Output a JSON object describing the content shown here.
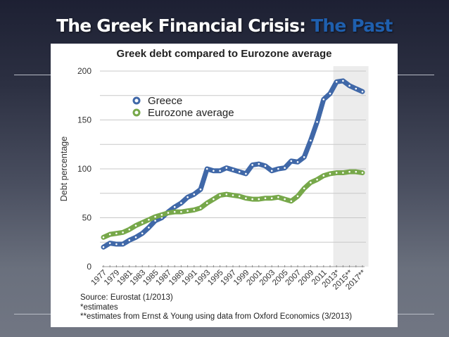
{
  "slide": {
    "title_main": "The Greek Financial Crisis: ",
    "title_accent": "The Past",
    "accent_color": "#1f5fae"
  },
  "chart": {
    "title": "Greek debt compared to Eurozone average",
    "ylabel": "Debt percentage",
    "legend": [
      {
        "label": "Greece",
        "color": "#4068a8"
      },
      {
        "label": "Eurozone average",
        "color": "#77a84a"
      }
    ],
    "notes": {
      "source": "Source: Eurostat (1/2013)",
      "note1": "*estimates",
      "note2": "**estimates from Ernst & Young using data from Oxford Economics (3/2013)"
    }
  },
  "chart_data": {
    "type": "line",
    "title": "Greek debt compared to Eurozone average",
    "xlabel": "",
    "ylabel": "Debt percentage",
    "ylim": [
      0,
      200
    ],
    "yticks": [
      0,
      50,
      100,
      150,
      200
    ],
    "grid": true,
    "legend_position": "upper left",
    "x": [
      1977,
      1978,
      1979,
      1980,
      1981,
      1982,
      1983,
      1984,
      1985,
      1986,
      1987,
      1988,
      1989,
      1990,
      1991,
      1992,
      1993,
      1994,
      1995,
      1996,
      1997,
      1998,
      1999,
      2000,
      2001,
      2002,
      2003,
      2004,
      2005,
      2006,
      2007,
      2008,
      2009,
      2010,
      2011,
      2012,
      2013,
      2014,
      2015,
      2016,
      2017
    ],
    "xtick_labels": [
      "1977",
      "1979",
      "1981",
      "1983",
      "1985",
      "1987",
      "1989",
      "1991",
      "1993",
      "1995",
      "1997",
      "1999",
      "2001",
      "2003",
      "2005",
      "2007",
      "2009",
      "2011",
      "2013*",
      "2015**",
      "2017**"
    ],
    "shaded_region": {
      "from": 2012.5,
      "to": 2017.5,
      "meaning": "estimates"
    },
    "series": [
      {
        "name": "Greece",
        "color": "#4068a8",
        "values": [
          20,
          24,
          23,
          23,
          27,
          30,
          34,
          40,
          47,
          50,
          56,
          61,
          65,
          71,
          74,
          79,
          100,
          98,
          98,
          101,
          99,
          97,
          95,
          104,
          105,
          103,
          98,
          100,
          101,
          108,
          107,
          112,
          129,
          148,
          171,
          177,
          189,
          190,
          185,
          182,
          179
        ]
      },
      {
        "name": "Eurozone average",
        "color": "#77a84a",
        "values": [
          30,
          33,
          34,
          35,
          38,
          42,
          45,
          48,
          51,
          53,
          55,
          56,
          56,
          57,
          58,
          60,
          65,
          69,
          73,
          74,
          73,
          72,
          70,
          69,
          69,
          70,
          70,
          71,
          69,
          67,
          72,
          80,
          86,
          89,
          93,
          95,
          96,
          96,
          97,
          97,
          96
        ]
      }
    ],
    "annotations": [
      "Source: Eurostat (1/2013)",
      "*estimates",
      "**estimates from Ernst & Young using data from Oxford Economics (3/2013)"
    ]
  }
}
